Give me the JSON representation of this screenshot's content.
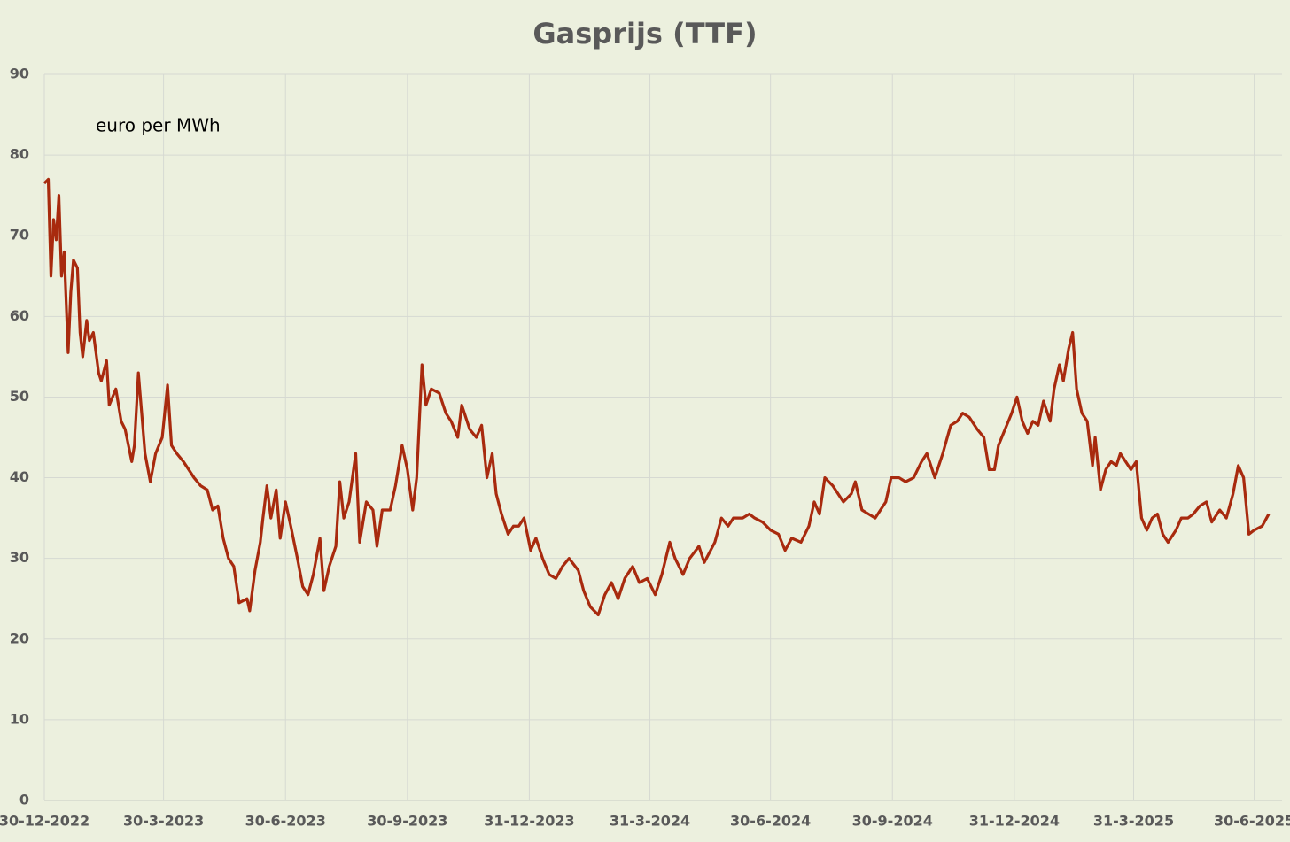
{
  "chart_data": {
    "type": "line",
    "title": "Gasprijs (TTF)",
    "annotation": "euro per MWh",
    "grid": true,
    "ylim": [
      0,
      90
    ],
    "yticks": [
      0,
      10,
      20,
      30,
      40,
      50,
      60,
      70,
      80,
      90
    ],
    "xlim": [
      "2022-12-30",
      "2025-07-21"
    ],
    "xticks": [
      {
        "value": "2022-12-30",
        "label": "30-12-2022"
      },
      {
        "value": "2023-03-30",
        "label": "30-3-2023"
      },
      {
        "value": "2023-06-30",
        "label": "30-6-2023"
      },
      {
        "value": "2023-09-30",
        "label": "30-9-2023"
      },
      {
        "value": "2023-12-31",
        "label": "31-12-2023"
      },
      {
        "value": "2024-03-31",
        "label": "31-3-2024"
      },
      {
        "value": "2024-06-30",
        "label": "30-6-2024"
      },
      {
        "value": "2024-09-30",
        "label": "30-9-2024"
      },
      {
        "value": "2024-12-31",
        "label": "31-12-2024"
      },
      {
        "value": "2025-03-31",
        "label": "31-3-2025"
      },
      {
        "value": "2025-06-30",
        "label": "30-6-2025"
      }
    ],
    "x": [
      "2022-12-30",
      "2023-01-02",
      "2023-01-04",
      "2023-01-06",
      "2023-01-08",
      "2023-01-10",
      "2023-01-12",
      "2023-01-14",
      "2023-01-17",
      "2023-01-19",
      "2023-01-21",
      "2023-01-24",
      "2023-01-26",
      "2023-01-28",
      "2023-01-31",
      "2023-02-02",
      "2023-02-05",
      "2023-02-09",
      "2023-02-11",
      "2023-02-15",
      "2023-02-17",
      "2023-02-22",
      "2023-02-26",
      "2023-03-01",
      "2023-03-06",
      "2023-03-08",
      "2023-03-11",
      "2023-03-13",
      "2023-03-16",
      "2023-03-20",
      "2023-03-24",
      "2023-03-29",
      "2023-04-02",
      "2023-04-05",
      "2023-04-09",
      "2023-04-14",
      "2023-04-18",
      "2023-04-22",
      "2023-04-27",
      "2023-05-02",
      "2023-05-06",
      "2023-05-10",
      "2023-05-14",
      "2023-05-18",
      "2023-05-22",
      "2023-05-26",
      "2023-06-01",
      "2023-06-03",
      "2023-06-07",
      "2023-06-11",
      "2023-06-13",
      "2023-06-16",
      "2023-06-19",
      "2023-06-23",
      "2023-06-26",
      "2023-06-30",
      "2023-07-04",
      "2023-07-09",
      "2023-07-13",
      "2023-07-17",
      "2023-07-21",
      "2023-07-26",
      "2023-07-29",
      "2023-08-02",
      "2023-08-07",
      "2023-08-10",
      "2023-08-13",
      "2023-08-17",
      "2023-08-22",
      "2023-08-25",
      "2023-08-30",
      "2023-09-04",
      "2023-09-07",
      "2023-09-11",
      "2023-09-17",
      "2023-09-21",
      "2023-09-26",
      "2023-09-30",
      "2023-10-04",
      "2023-10-07",
      "2023-10-11",
      "2023-10-14",
      "2023-10-18",
      "2023-10-24",
      "2023-10-29",
      "2023-11-02",
      "2023-11-07",
      "2023-11-10",
      "2023-11-16",
      "2023-11-21",
      "2023-11-25",
      "2023-11-29",
      "2023-12-03",
      "2023-12-06",
      "2023-12-10",
      "2023-12-15",
      "2023-12-19",
      "2023-12-23",
      "2023-12-27",
      "2024-01-01",
      "2024-01-05",
      "2024-01-10",
      "2024-01-15",
      "2024-01-20",
      "2024-01-25",
      "2024-01-30",
      "2024-02-06",
      "2024-02-10",
      "2024-02-15",
      "2024-02-21",
      "2024-02-26",
      "2024-03-02",
      "2024-03-07",
      "2024-03-12",
      "2024-03-18",
      "2024-03-23",
      "2024-03-29",
      "2024-04-04",
      "2024-04-09",
      "2024-04-15",
      "2024-04-19",
      "2024-04-25",
      "2024-04-30",
      "2024-05-07",
      "2024-05-11",
      "2024-05-19",
      "2024-05-24",
      "2024-05-29",
      "2024-06-02",
      "2024-06-09",
      "2024-06-14",
      "2024-06-18",
      "2024-06-24",
      "2024-06-30",
      "2024-07-06",
      "2024-07-11",
      "2024-07-16",
      "2024-07-23",
      "2024-07-29",
      "2024-08-02",
      "2024-08-06",
      "2024-08-10",
      "2024-08-16",
      "2024-08-20",
      "2024-08-24",
      "2024-08-30",
      "2024-09-02",
      "2024-09-07",
      "2024-09-12",
      "2024-09-17",
      "2024-09-21",
      "2024-09-25",
      "2024-09-29",
      "2024-10-05",
      "2024-10-10",
      "2024-10-16",
      "2024-10-22",
      "2024-10-26",
      "2024-11-01",
      "2024-11-07",
      "2024-11-13",
      "2024-11-18",
      "2024-11-22",
      "2024-11-27",
      "2024-12-03",
      "2024-12-08",
      "2024-12-12",
      "2024-12-16",
      "2024-12-19",
      "2024-12-24",
      "2024-12-29",
      "2025-01-02",
      "2025-01-06",
      "2025-01-10",
      "2025-01-14",
      "2025-01-18",
      "2025-01-22",
      "2025-01-27",
      "2025-01-30",
      "2025-02-03",
      "2025-02-06",
      "2025-02-10",
      "2025-02-13",
      "2025-02-16",
      "2025-02-20",
      "2025-02-24",
      "2025-02-28",
      "2025-03-02",
      "2025-03-06",
      "2025-03-10",
      "2025-03-14",
      "2025-03-18",
      "2025-03-21",
      "2025-03-25",
      "2025-03-29",
      "2025-04-02",
      "2025-04-06",
      "2025-04-10",
      "2025-04-14",
      "2025-04-18",
      "2025-04-22",
      "2025-04-26",
      "2025-05-02",
      "2025-05-06",
      "2025-05-11",
      "2025-05-15",
      "2025-05-20",
      "2025-05-25",
      "2025-05-29",
      "2025-06-04",
      "2025-06-09",
      "2025-06-14",
      "2025-06-18",
      "2025-06-22",
      "2025-06-26",
      "2025-06-30",
      "2025-07-06",
      "2025-07-11"
    ],
    "series": [
      {
        "color": "#a82a0e",
        "values": [
          76.5,
          77,
          65,
          72,
          69.5,
          75,
          65,
          68,
          55.5,
          63,
          67,
          66,
          58,
          55,
          59.5,
          57,
          58,
          53,
          52,
          54.5,
          49,
          51,
          47,
          46,
          42,
          44,
          53,
          49,
          43,
          39.5,
          43,
          45,
          51.5,
          44,
          43,
          42,
          41,
          40,
          39,
          38.5,
          36,
          36.5,
          32.5,
          30,
          29,
          24.5,
          25,
          23.5,
          28.5,
          32,
          35,
          39,
          35,
          38.5,
          32.5,
          37,
          34,
          30,
          26.5,
          25.5,
          28,
          32.5,
          26,
          29,
          31.5,
          39.5,
          35,
          37,
          43,
          32,
          37,
          36,
          31.5,
          36,
          36,
          39,
          44,
          41,
          36,
          40,
          54,
          49,
          51,
          50.5,
          48,
          47,
          45,
          49,
          46,
          45,
          46.5,
          40,
          43,
          38,
          35.5,
          33,
          34,
          34,
          35,
          31,
          32.5,
          30,
          28,
          27.5,
          29,
          30,
          28.5,
          26,
          24,
          23,
          25.5,
          27,
          25,
          27.5,
          29,
          27,
          27.5,
          25.5,
          28,
          32,
          30,
          28,
          30,
          31.5,
          29.5,
          32,
          35,
          34,
          35,
          35,
          35.5,
          35,
          34.5,
          33.5,
          33,
          31,
          32.5,
          32,
          34,
          37,
          35.5,
          40,
          39,
          38,
          37,
          38,
          39.5,
          36,
          35.5,
          35,
          36,
          37,
          40,
          40,
          39.5,
          40,
          42,
          43,
          40,
          43,
          46.5,
          47,
          48,
          47.5,
          46,
          45,
          41,
          41,
          44,
          46,
          48,
          50,
          47,
          45.5,
          47,
          46.5,
          49.5,
          47,
          51,
          54,
          52,
          56,
          58,
          51,
          48,
          47,
          41.5,
          45,
          38.5,
          41,
          42,
          41.5,
          43,
          42,
          41,
          42,
          35,
          33.5,
          35,
          35.5,
          33,
          32,
          33.5,
          35,
          35,
          35.5,
          36.5,
          37,
          34.5,
          36,
          35,
          38,
          41.5,
          40,
          33,
          33.5,
          34,
          35.5
        ]
      }
    ]
  }
}
